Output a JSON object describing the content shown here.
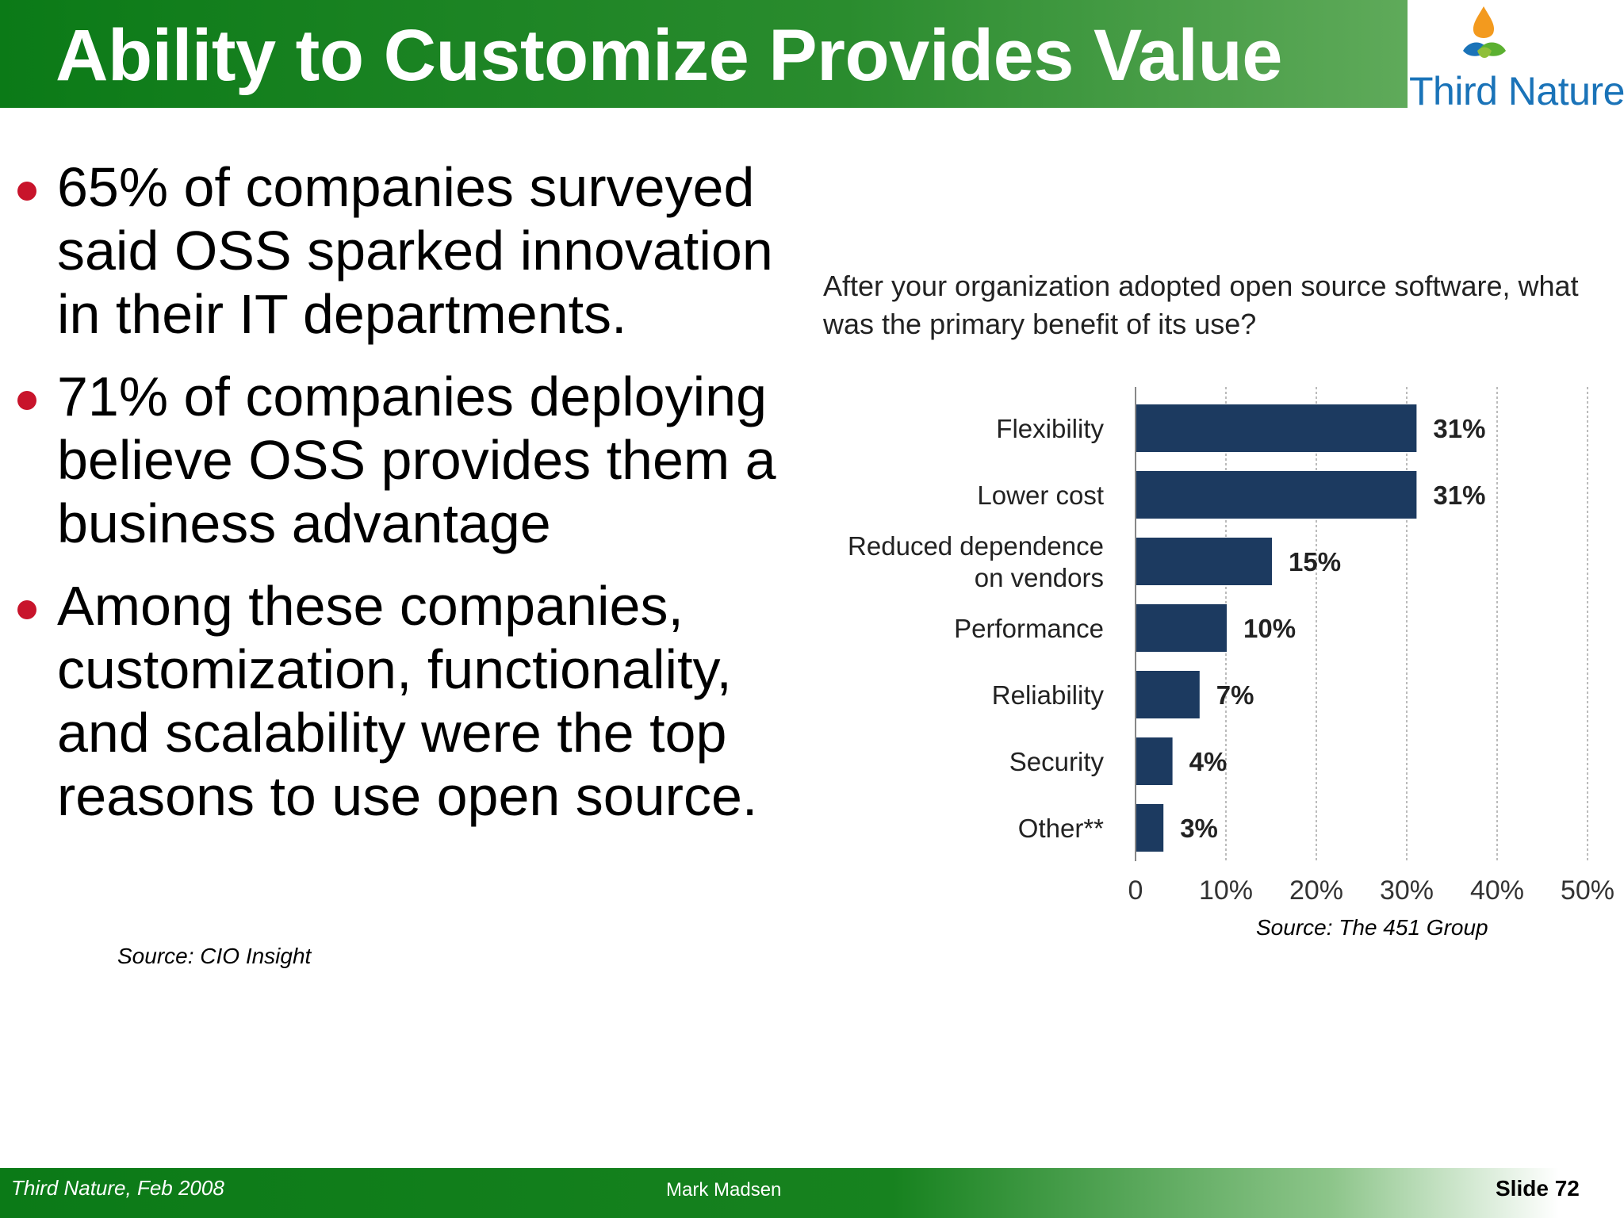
{
  "slide": {
    "title": "Ability to Customize Provides Value",
    "logo_text": "Third Nature",
    "bullets": [
      "65% of companies surveyed said OSS sparked innovation in their IT departments.",
      "71% of companies deploying believe OSS provides them a business advantage",
      "Among these companies, customization, functionality, and scalability were the top reasons to use open source."
    ],
    "source_left": "Source: CIO Insight",
    "source_right": "Source: The 451 Group",
    "footer": {
      "left": "Third Nature, Feb 2008",
      "center": "Mark Madsen",
      "right": "Slide 72"
    }
  },
  "colors": {
    "title_green": "#0b7a17",
    "bullet_red": "#c8142b",
    "bar_navy": "#1c3a60",
    "logo_blue": "#1a73b8"
  },
  "chart_data": {
    "type": "bar",
    "orientation": "horizontal",
    "title": "After your organization adopted open source software, what was the primary benefit of its use?",
    "title_lines": [
      "After your organization adopted open source software, what",
      "was the primary benefit of its use?"
    ],
    "categories": [
      [
        "Flexibility"
      ],
      [
        "Lower cost"
      ],
      [
        "Reduced dependence",
        "on vendors"
      ],
      [
        "Performance"
      ],
      [
        "Reliability"
      ],
      [
        "Security"
      ],
      [
        "Other**"
      ]
    ],
    "values": [
      31,
      31,
      15,
      10,
      7,
      4,
      3
    ],
    "value_labels": [
      "31%",
      "31%",
      "15%",
      "10%",
      "7%",
      "4%",
      "3%"
    ],
    "xlim": [
      0,
      50
    ],
    "ticks": [
      0,
      10,
      20,
      30,
      40,
      50
    ],
    "tick_labels": [
      "0",
      "10%",
      "20%",
      "30%",
      "40%",
      "50%"
    ],
    "grid": true
  }
}
